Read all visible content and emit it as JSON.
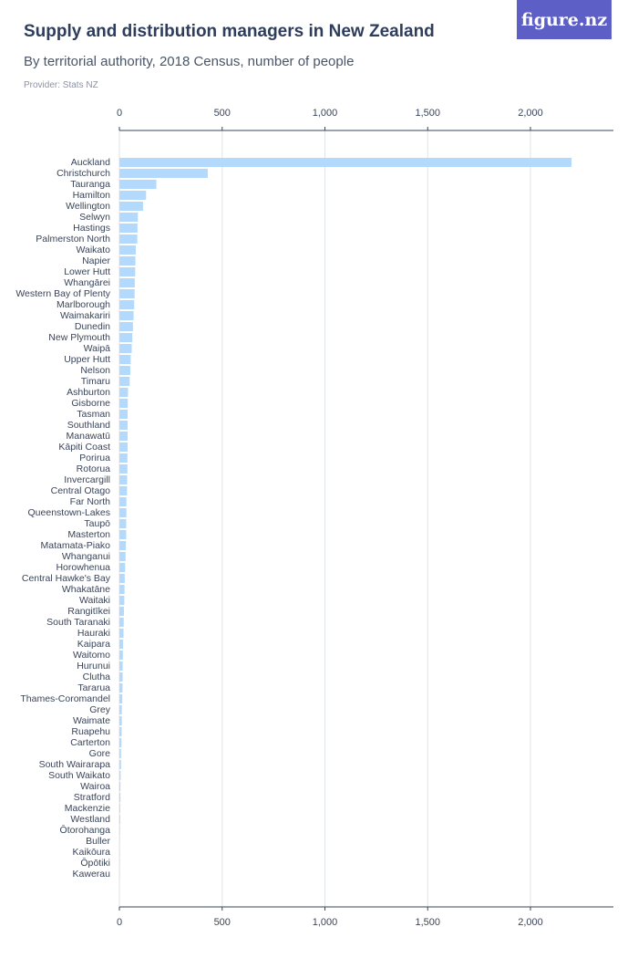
{
  "header": {
    "title": "Supply and distribution managers in New Zealand",
    "subtitle": "By territorial authority, 2018 Census, number of people",
    "provider": "Provider: Stats NZ",
    "logo": "figure.nz"
  },
  "colors": {
    "bar": "#b3dafc",
    "grid": "#dfe3ea",
    "axis": "#3a4558"
  },
  "chart_data": {
    "type": "bar",
    "orientation": "horizontal",
    "title": "Supply and distribution managers in New Zealand",
    "subtitle": "By territorial authority, 2018 Census, number of people",
    "xlim": [
      0,
      2400
    ],
    "ticks": [
      0,
      500,
      1000,
      1500,
      2000
    ],
    "tick_labels": [
      "0",
      "500",
      "1,000",
      "1,500",
      "2,000"
    ],
    "grid": true,
    "categories": [
      "Auckland",
      "Christchurch",
      "Tauranga",
      "Hamilton",
      "Wellington",
      "Selwyn",
      "Hastings",
      "Palmerston North",
      "Waikato",
      "Napier",
      "Lower Hutt",
      "Whangārei",
      "Western Bay of Plenty",
      "Marlborough",
      "Waimakariri",
      "Dunedin",
      "New Plymouth",
      "Waipā",
      "Upper Hutt",
      "Nelson",
      "Timaru",
      "Ashburton",
      "Gisborne",
      "Tasman",
      "Southland",
      "Manawatū",
      "Kāpiti Coast",
      "Porirua",
      "Rotorua",
      "Invercargill",
      "Central Otago",
      "Far North",
      "Queenstown-Lakes",
      "Taupō",
      "Masterton",
      "Matamata-Piako",
      "Whanganui",
      "Horowhenua",
      "Central Hawke's Bay",
      "Whakatāne",
      "Waitaki",
      "Rangitīkei",
      "South Taranaki",
      "Hauraki",
      "Kaipara",
      "Waitomo",
      "Hurunui",
      "Clutha",
      "Tararua",
      "Thames-Coromandel",
      "Grey",
      "Waimate",
      "Ruapehu",
      "Carterton",
      "Gore",
      "South Wairarapa",
      "South Waikato",
      "Wairoa",
      "Stratford",
      "Mackenzie",
      "Westland",
      "Ōtorohanga",
      "Buller",
      "Kaikōura",
      "Ōpōtiki",
      "Kawerau"
    ],
    "values": [
      2200,
      430,
      180,
      130,
      115,
      90,
      88,
      87,
      80,
      78,
      77,
      75,
      74,
      72,
      69,
      66,
      63,
      60,
      55,
      53,
      50,
      42,
      41,
      40,
      40,
      40,
      40,
      39,
      39,
      38,
      37,
      34,
      34,
      33,
      33,
      32,
      30,
      28,
      26,
      25,
      24,
      22,
      21,
      20,
      18,
      17,
      16,
      16,
      15,
      14,
      12,
      12,
      11,
      10,
      8,
      8,
      6,
      5,
      5,
      4,
      4,
      3,
      2,
      2,
      1,
      1
    ]
  }
}
